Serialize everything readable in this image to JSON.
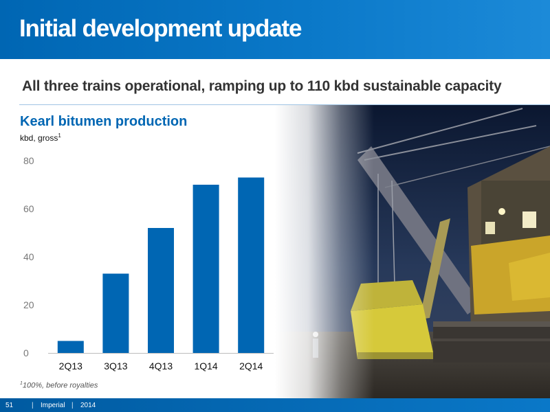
{
  "header": {
    "title": "Initial development update"
  },
  "subtitle": "All three trains operational, ramping up to 110 kbd sustainable capacity",
  "chart_data": {
    "type": "bar",
    "title": "Kearl bitumen production",
    "ylabel": "kbd, gross",
    "ylabel_note_marker": "1",
    "categories": [
      "2Q13",
      "3Q13",
      "4Q13",
      "1Q14",
      "2Q14"
    ],
    "values": [
      5,
      33,
      52,
      70,
      73
    ],
    "yticks": [
      "0",
      "20",
      "40",
      "60",
      "80"
    ],
    "ylim": [
      0,
      80
    ],
    "grid": false,
    "bar_color": "#0066b3"
  },
  "footnote": {
    "marker": "1",
    "text": "100%, before royalties"
  },
  "footer": {
    "page": "51",
    "company": "Imperial",
    "year": "2014",
    "separator": "|"
  }
}
